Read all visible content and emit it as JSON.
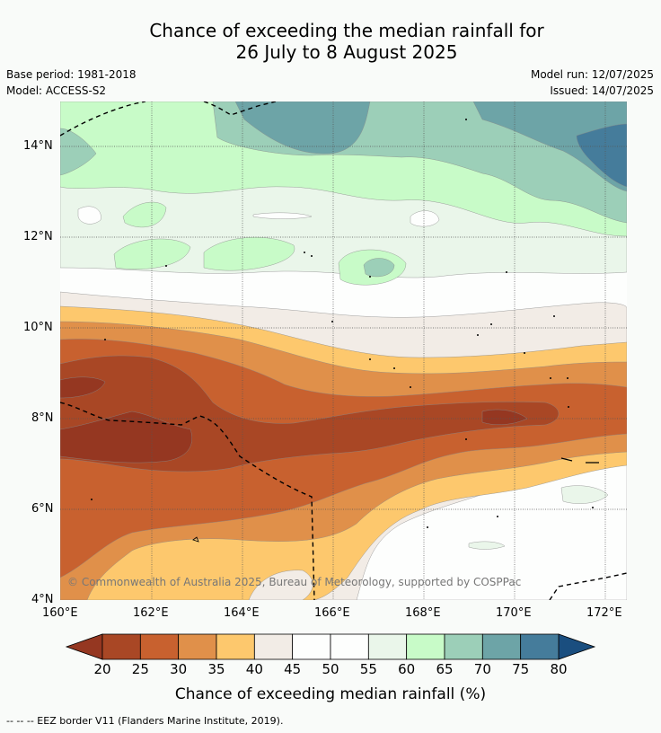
{
  "title_line1": "Chance of exceeding the median rainfall for",
  "title_line2": "26 July to 8 August 2025",
  "base_period": "Base period: 1981-2018",
  "model": "Model: ACCESS-S2",
  "model_run": "Model run: 12/07/2025",
  "issued": "Issued: 14/07/2025",
  "lat_labels": [
    "14°N",
    "12°N",
    "10°N",
    "8°N",
    "6°N",
    "4°N"
  ],
  "lon_labels": [
    "160°E",
    "162°E",
    "164°E",
    "166°E",
    "168°E",
    "170°E",
    "172°E"
  ],
  "copyright": "© Commonwealth of Australia 2025, Bureau of Meteorology, supported by COSPPac",
  "colorbar": {
    "label": "Chance of exceeding median rainfall (%)",
    "ticks": [
      "20",
      "25",
      "30",
      "35",
      "40",
      "45",
      "50",
      "55",
      "60",
      "65",
      "70",
      "75",
      "80"
    ],
    "colors": [
      "#a94725",
      "#c8612f",
      "#e0904a",
      "#fdc86d",
      "#f2ece6",
      "#fdfefd",
      "#fdfefd",
      "#eaf6ea",
      "#c8fbc8",
      "#9ccfb8",
      "#6da4a7",
      "#457c9b"
    ],
    "low_color": "#953721",
    "high_color": "#1a4e7f"
  },
  "footnote": "--  --  -- EEZ border V11 (Flanders Marine Institute, 2019)."
}
